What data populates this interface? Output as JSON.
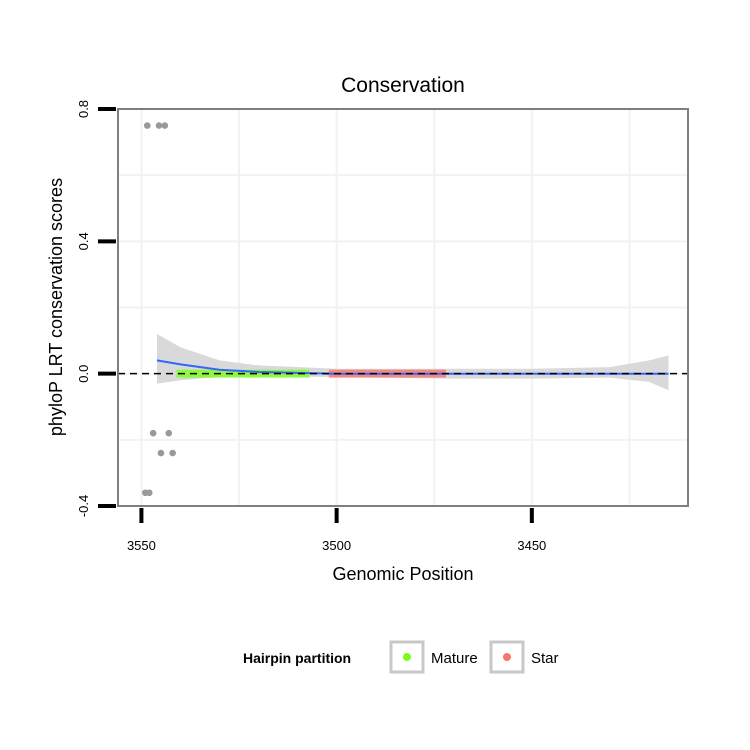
{
  "chart_data": {
    "type": "scatter",
    "title": "Conservation",
    "xlabel": "Genomic Position",
    "ylabel": "phyloP LRT conservation scores",
    "x_reversed": true,
    "xlim": [
      3556,
      3410
    ],
    "ylim": [
      -0.4,
      0.8
    ],
    "xticks": [
      3550,
      3500,
      3450
    ],
    "yticks": [
      -0.4,
      0.0,
      0.4,
      0.8
    ],
    "grid": true,
    "reference_line": {
      "y": 0.0,
      "style": "dashed",
      "color": "#000000"
    },
    "legend": {
      "title": "Hairpin partition",
      "position": "bottom",
      "entries": [
        {
          "label": "Mature",
          "color": "#7cfc1a"
        },
        {
          "label": "Star",
          "color": "#f8766d"
        }
      ]
    },
    "colors": {
      "points": "#999999",
      "smooth": "#3366ff",
      "ribbon": "#d9d9d9",
      "panel_border": "#7f7f7f",
      "grid": "#f2f2f2"
    },
    "series": [
      {
        "name": "Mature",
        "role": "partition",
        "x_range": [
          3541,
          3507
        ],
        "color": "#7cfc1a"
      },
      {
        "name": "Star",
        "role": "partition",
        "x_range": [
          3502,
          3472
        ],
        "color": "#f8766d"
      }
    ],
    "points": {
      "x": [
        3548.5,
        3545.5,
        3544.0,
        3547.0,
        3543.0,
        3545.0,
        3542.0,
        3549.0,
        3548.0
      ],
      "y": [
        0.75,
        0.75,
        0.75,
        -0.18,
        -0.18,
        -0.24,
        -0.24,
        -0.36,
        -0.36
      ]
    },
    "smooth_curve": {
      "x": [
        3546,
        3540,
        3530,
        3520,
        3500,
        3450,
        3415
      ],
      "y": [
        0.04,
        0.028,
        0.012,
        0.005,
        0.0,
        0.0,
        0.0
      ]
    },
    "confidence_band": {
      "x": [
        3546,
        3540,
        3530,
        3520,
        3500,
        3470,
        3450,
        3430,
        3420,
        3415
      ],
      "lower": [
        -0.03,
        -0.02,
        -0.01,
        -0.008,
        -0.01,
        -0.015,
        -0.015,
        -0.012,
        -0.025,
        -0.05
      ],
      "upper": [
        0.12,
        0.08,
        0.04,
        0.025,
        0.015,
        0.015,
        0.015,
        0.02,
        0.04,
        0.055
      ]
    }
  }
}
